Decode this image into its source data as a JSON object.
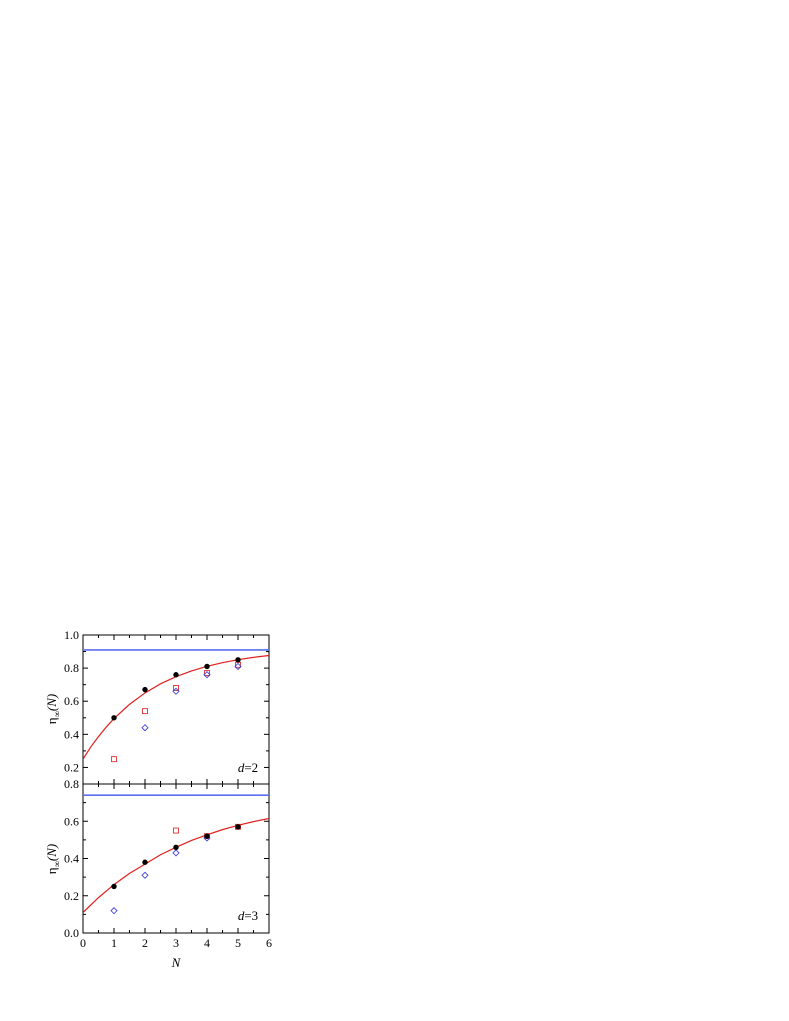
{
  "chart_data": [
    {
      "type": "scatter",
      "panel": "top",
      "annotation": {
        "italic": "d",
        "rest": "=2"
      },
      "ylabel": {
        "main": "η",
        "sub": "∞",
        "rest": "(N)"
      },
      "xlim": [
        0,
        6
      ],
      "ylim": [
        0.1,
        1.0
      ],
      "yticks": [
        "0.2",
        "0.4",
        "0.6",
        "0.8",
        "1.0"
      ],
      "grid": false,
      "series": [
        {
          "marker": "filled-circle",
          "color": "#000000",
          "x": [
            1,
            2,
            3,
            4,
            5
          ],
          "y": [
            0.5,
            0.67,
            0.76,
            0.81,
            0.85
          ]
        },
        {
          "marker": "open-square",
          "color": "#e03030",
          "x": [
            1,
            2,
            3,
            4,
            5
          ],
          "y": [
            0.25,
            0.54,
            0.68,
            0.77,
            0.82
          ]
        },
        {
          "marker": "open-diamond",
          "color": "#4040e0",
          "x": [
            2,
            3,
            4,
            5
          ],
          "y": [
            0.44,
            0.66,
            0.76,
            0.81
          ]
        },
        {
          "marker": "line",
          "color": "#e02020",
          "x": [
            0,
            0.25,
            0.5,
            0.75,
            1,
            1.5,
            2,
            2.5,
            3,
            3.5,
            4,
            4.5,
            5,
            5.5,
            6
          ],
          "y": [
            0.25,
            0.324,
            0.386,
            0.444,
            0.495,
            0.581,
            0.65,
            0.705,
            0.748,
            0.783,
            0.811,
            0.833,
            0.851,
            0.865,
            0.876
          ]
        },
        {
          "marker": "hline",
          "color": "#5b6ef0",
          "y": [
            0.91
          ]
        }
      ]
    },
    {
      "type": "scatter",
      "panel": "bottom",
      "annotation": {
        "italic": "d",
        "rest": "=3"
      },
      "ylabel": {
        "main": "η",
        "sub": "∞",
        "rest": "(N)"
      },
      "xlabel": "N",
      "xlim": [
        0,
        6
      ],
      "ylim": [
        0.0,
        0.8
      ],
      "xticks": [
        "0",
        "1",
        "2",
        "3",
        "4",
        "5",
        "6"
      ],
      "yticks": [
        "0.0",
        "0.2",
        "0.4",
        "0.6",
        "0.8"
      ],
      "grid": false,
      "series": [
        {
          "marker": "filled-circle",
          "color": "#000000",
          "x": [
            1,
            2,
            3,
            4,
            5
          ],
          "y": [
            0.25,
            0.38,
            0.46,
            0.52,
            0.57
          ]
        },
        {
          "marker": "open-square",
          "color": "#e03030",
          "x": [
            3,
            4,
            5
          ],
          "y": [
            0.55,
            0.52,
            0.57
          ]
        },
        {
          "marker": "open-diamond",
          "color": "#4040e0",
          "x": [
            1,
            2,
            3,
            4
          ],
          "y": [
            0.12,
            0.31,
            0.43,
            0.51
          ]
        },
        {
          "marker": "line",
          "color": "#e02020",
          "x": [
            0,
            0.5,
            1,
            1.5,
            2,
            2.5,
            3,
            3.5,
            4,
            4.5,
            5,
            5.5,
            6
          ],
          "y": [
            0.11,
            0.19,
            0.26,
            0.32,
            0.37,
            0.42,
            0.46,
            0.497,
            0.527,
            0.555,
            0.578,
            0.598,
            0.615
          ]
        },
        {
          "marker": "hline",
          "color": "#5b6ef0",
          "y": [
            0.74
          ]
        }
      ]
    }
  ]
}
